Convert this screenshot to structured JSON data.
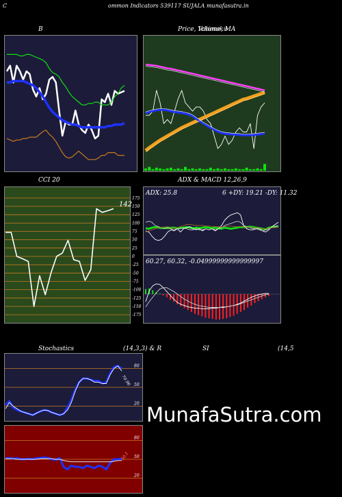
{
  "page": {
    "header_left": "C",
    "header_title": "ommon Indicators 539117 SUJALA munafasutra.in",
    "watermark": "MunafaSutra.com"
  },
  "colors": {
    "navy_bg": "#1c1c3a",
    "green_bg": "#1f3b1f",
    "cci_bg": "#2a4a1c",
    "red_bg": "#800000",
    "orange_grid": "#c87a1e",
    "blue_line": "#1e32ff",
    "bright_green": "#10e010",
    "orange_band": "#f0a020",
    "magenta": "#ff40ff"
  },
  "chart_data": [
    {
      "id": "bollinger",
      "type": "line",
      "title": "B",
      "series": [
        {
          "color": "#ffffff",
          "values": [
            88,
            92,
            80,
            92,
            88,
            82,
            88,
            86,
            75,
            70,
            76,
            68,
            72,
            82,
            84,
            80,
            60,
            42,
            52,
            50,
            50,
            60,
            50,
            46,
            44,
            50,
            46,
            40,
            42,
            68,
            66,
            72,
            64,
            74,
            72,
            73,
            74
          ]
        },
        {
          "color": "#1e32ff",
          "values": [
            80,
            80,
            81,
            81,
            81,
            81,
            80,
            79,
            78,
            76,
            73,
            70,
            66,
            62,
            59,
            57,
            55,
            53,
            52,
            51,
            50,
            50,
            49,
            48,
            48,
            48,
            48,
            48,
            48,
            48,
            48,
            49,
            49,
            50,
            50,
            50,
            51
          ]
        },
        {
          "color": "#10e010",
          "values": [
            100,
            100,
            100,
            100,
            99,
            99,
            100,
            100,
            99,
            98,
            97,
            96,
            94,
            90,
            87,
            86,
            84,
            80,
            77,
            73,
            70,
            68,
            66,
            64,
            64,
            65,
            65,
            66,
            66,
            64,
            64,
            64,
            66,
            70,
            72,
            76,
            78
          ]
        },
        {
          "color": "#c87a1e",
          "values": [
            40,
            39,
            38,
            39,
            39,
            40,
            40,
            41,
            41,
            41,
            43,
            45,
            46,
            43,
            41,
            38,
            34,
            30,
            27,
            26,
            27,
            29,
            31,
            29,
            27,
            25,
            25,
            25,
            26,
            28,
            28,
            30,
            30,
            30,
            28,
            28,
            28
          ]
        }
      ],
      "ylim": [
        20,
        110
      ]
    },
    {
      "id": "price_ma",
      "type": "line",
      "title": "Price, Volume, MA",
      "title_overlay": "Ichimoku",
      "series": [
        {
          "color": "#ffffff",
          "values": [
            12,
            12,
            13,
            18,
            15,
            10,
            11,
            10,
            13,
            16,
            18,
            15,
            14,
            13,
            14,
            14,
            13,
            11,
            10,
            7,
            4,
            5,
            7,
            5,
            6,
            8,
            9,
            8,
            8,
            10,
            4,
            12,
            14,
            15
          ]
        },
        {
          "color": "#ff40ff",
          "values": [
            24.2,
            24.1,
            24.0,
            23.9,
            23.7,
            23.5,
            23.3,
            23.2,
            23.0,
            22.8,
            22.6,
            22.4,
            22.2,
            22.0,
            21.8,
            21.6,
            21.4,
            21.2,
            21.0,
            20.8,
            20.6,
            20.4,
            20.2,
            20.0,
            19.8,
            19.6,
            19.4,
            19.2,
            19.0,
            18.8,
            18.6,
            18.4,
            18.2,
            18.0
          ]
        },
        {
          "color": "#f0a020",
          "values": [
            3.5,
            4.2,
            4.8,
            5.4,
            6.0,
            6.5,
            7.0,
            7.5,
            8.0,
            8.5,
            9.0,
            9.4,
            9.8,
            10.2,
            10.6,
            11.0,
            11.4,
            11.8,
            12.2,
            12.6,
            13.0,
            13.4,
            13.8,
            14.2,
            14.6,
            15.0,
            15.4,
            15.8,
            16.0,
            16.3,
            16.6,
            16.9,
            17.2,
            17.5
          ]
        },
        {
          "color": "#1e32ff",
          "values": [
            12.5,
            12.8,
            13.0,
            13.2,
            13.3,
            13.3,
            13.2,
            13.0,
            12.8,
            12.7,
            12.6,
            12.4,
            12.2,
            11.8,
            11.2,
            10.6,
            10.0,
            9.5,
            9.0,
            8.5,
            8.1,
            7.8,
            7.6,
            7.5,
            7.4,
            7.4,
            7.3,
            7.2,
            7.2,
            7.2,
            7.3,
            7.4,
            7.5,
            7.6
          ]
        }
      ],
      "volume": [
        3,
        5,
        2,
        4,
        3,
        2,
        3,
        4,
        2,
        3,
        2,
        5,
        2,
        3,
        2,
        3,
        2,
        2,
        4,
        2,
        3,
        2,
        3,
        2,
        2,
        3,
        2,
        2,
        4,
        2,
        2,
        3,
        2,
        9
      ],
      "ylim": [
        0,
        30
      ]
    },
    {
      "id": "cci",
      "type": "line",
      "title": "CCI 20",
      "value_label": "142",
      "ticks": [
        "175",
        "150",
        "125",
        "100",
        "75",
        "50",
        "25",
        "0",
        "-25",
        "-50",
        "-75",
        "-100",
        "-125",
        "-150",
        "-175"
      ],
      "series": [
        {
          "color": "#ffffff",
          "values": [
            72,
            72,
            0,
            -7,
            -15,
            -150,
            -58,
            -115,
            -50,
            0,
            10,
            48,
            -10,
            -15,
            -72,
            -40,
            143,
            132,
            137,
            143
          ]
        }
      ],
      "ylim": [
        -185,
        185
      ]
    },
    {
      "id": "adx",
      "type": "line",
      "title": "ADX  & MACD 12,26,9",
      "info": "ADX: 25.8",
      "info_right": "6  +DY: 19.21 -DY: 11.32",
      "series": [
        {
          "color": "#10e010",
          "values": [
            45,
            44,
            46,
            47,
            46,
            45,
            46,
            45,
            46,
            46,
            45,
            46,
            46,
            47,
            46,
            45,
            46,
            45,
            46,
            47,
            46,
            45,
            46,
            45,
            44,
            46,
            45,
            44,
            45,
            46,
            47,
            47,
            47,
            48,
            47,
            46,
            45,
            44,
            43,
            46,
            47,
            48,
            48
          ]
        },
        {
          "color": "#ffffff",
          "values": [
            40,
            38,
            30,
            24,
            22,
            24,
            30,
            38,
            42,
            40,
            44,
            38,
            44,
            46,
            48,
            44,
            42,
            44,
            40,
            44,
            42,
            44,
            40,
            44,
            50,
            60,
            66,
            70,
            72,
            74,
            70,
            50,
            44,
            42,
            42,
            44,
            44,
            40,
            38,
            42,
            48,
            52,
            56
          ]
        },
        {
          "color": "#dddddd",
          "values": [
            56,
            58,
            56,
            50,
            48,
            46,
            44,
            46,
            44,
            42,
            44,
            44,
            46,
            44,
            42,
            42,
            44,
            42,
            42,
            44,
            42,
            44,
            42,
            44,
            46,
            50,
            52,
            54,
            56,
            58,
            56,
            50,
            48,
            46,
            44,
            44,
            42,
            40,
            42,
            44,
            46,
            48,
            50
          ]
        },
        {
          "color": "#a0612a",
          "values": [
            38,
            40,
            42,
            44,
            46,
            46,
            47,
            48,
            46,
            45,
            46,
            48,
            50,
            52,
            52,
            51,
            50,
            50,
            50,
            49,
            49,
            48,
            48,
            48,
            47,
            48,
            49,
            49,
            48,
            48,
            48,
            47,
            47,
            47,
            46,
            46,
            45,
            44,
            44,
            45,
            46,
            46,
            47
          ]
        }
      ],
      "ylim": [
        0,
        100
      ]
    },
    {
      "id": "macd",
      "type": "bar",
      "info": "60.27,  60.32,  -0.04999999999999997",
      "histogram": [
        0.8,
        0.9,
        0.6,
        0.3,
        0.1,
        -0.2,
        -0.5,
        -0.9,
        -1.2,
        -1.6,
        -1.9,
        -2.2,
        -2.5,
        -2.8,
        -3.1,
        -3.3,
        -3.5,
        -3.7,
        -3.8,
        -3.9,
        -4.0,
        -4.0,
        -3.9,
        -3.8,
        -3.6,
        -3.4,
        -3.1,
        -2.8,
        -2.5,
        -2.1,
        -1.8,
        -1.4,
        -1.1,
        -0.8,
        -0.5,
        -0.3
      ],
      "series": [
        {
          "color": "#ffffff",
          "values": [
            -1.2,
            0.5,
            1.3,
            1.6,
            1.5,
            1.0,
            0.4,
            -0.2,
            -0.8,
            -1.3,
            -1.6,
            -1.8,
            -2.0,
            -2.1,
            -2.2,
            -2.2,
            -2.3,
            -2.3,
            -2.3,
            -2.2,
            -2.2,
            -2.1,
            -2.1,
            -2.0,
            -1.9,
            -1.8,
            -1.6,
            -1.4,
            -1.1,
            -0.8,
            -0.5,
            -0.3,
            -0.1,
            0.0,
            0.1,
            0.1
          ]
        },
        {
          "color": "#cccccc",
          "values": [
            -2.0,
            -1.2,
            -0.5,
            0.2,
            0.8,
            1.0,
            1.0,
            0.7,
            0.4,
            0.0,
            -0.4,
            -0.8,
            -1.1,
            -1.4,
            -1.6,
            -1.8,
            -1.9,
            -2.0,
            -2.1,
            -2.1,
            -2.1,
            -2.1,
            -2.0,
            -2.0,
            -1.9,
            -1.8,
            -1.7,
            -1.5,
            -1.3,
            -1.1,
            -0.9,
            -0.7,
            -0.5,
            -0.3,
            -0.1,
            0.0
          ]
        }
      ],
      "ylim": [
        -4.2,
        4.2
      ]
    },
    {
      "id": "stochastics",
      "type": "line",
      "title": "Stochastics",
      "title_params": "(14,3,3) & R",
      "value_label": "70.96",
      "ticks": [
        "80",
        "50",
        "20"
      ],
      "series": [
        {
          "color": "#1e32ff",
          "values": [
            22,
            28,
            18,
            14,
            12,
            10,
            8,
            6,
            9,
            12,
            14,
            13,
            10,
            8,
            6,
            8,
            18,
            30,
            46,
            58,
            64,
            64,
            62,
            60,
            60,
            56,
            58,
            72,
            82,
            84,
            80
          ]
        },
        {
          "color": "#ffffff",
          "values": [
            16,
            26,
            20,
            16,
            12,
            10,
            8,
            6,
            9,
            12,
            14,
            13,
            10,
            8,
            6,
            8,
            14,
            26,
            44,
            58,
            64,
            64,
            62,
            58,
            58,
            56,
            56,
            70,
            80,
            84,
            76
          ]
        }
      ],
      "ylim": [
        0,
        100
      ]
    },
    {
      "id": "rsi",
      "type": "line",
      "title": "SI",
      "title_right": "(14,5",
      "value_label": "50.1",
      "ticks": [
        "80",
        "50",
        "20"
      ],
      "series": [
        {
          "color": "#1e32ff",
          "values": [
            52,
            52,
            51,
            52,
            50,
            50,
            51,
            50,
            52,
            52,
            53,
            52,
            50,
            49,
            52,
            38,
            34,
            40,
            38,
            38,
            36,
            40,
            38,
            36,
            40,
            38,
            34,
            44,
            50,
            50,
            51
          ]
        },
        {
          "color": "#ffffff",
          "values": [
            51,
            51,
            51,
            50,
            50,
            50,
            50,
            50,
            50,
            51,
            51,
            51,
            51,
            50,
            50,
            48,
            47,
            46,
            46,
            46,
            46,
            46,
            46,
            46,
            46,
            46,
            46,
            46,
            47,
            48,
            48
          ]
        }
      ],
      "ylim": [
        0,
        100
      ]
    }
  ]
}
